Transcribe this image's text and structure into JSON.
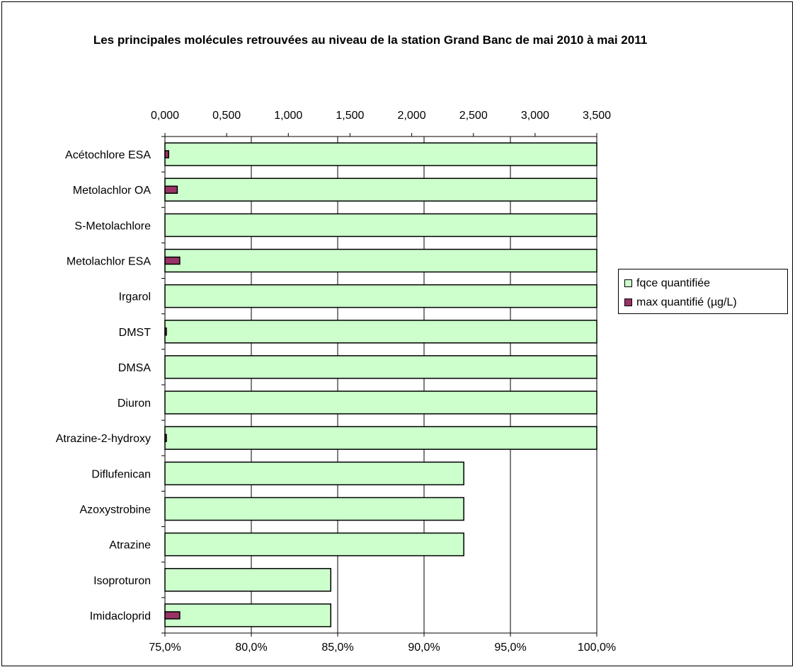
{
  "chart_data": {
    "type": "bar",
    "orientation": "horizontal",
    "title": "Les principales molécules retrouvées au niveau de la station Grand Banc de mai 2010 à mai 2011",
    "categories": [
      "Acétochlore ESA",
      "Metolachlor OA",
      "S-Metolachlore",
      "Metolachlor ESA",
      "Irgarol",
      "DMST",
      "DMSA",
      "Diuron",
      "Atrazine-2-hydroxy",
      "Diflufenican",
      "Azoxystrobine",
      "Atrazine",
      "Isoproturon",
      "Imidacloprid"
    ],
    "series": [
      {
        "name": "fqce quantifiée",
        "axis": "bottom",
        "color": "#ccffcc",
        "values": [
          100.0,
          100.0,
          100.0,
          100.0,
          100.0,
          100.0,
          100.0,
          100.0,
          100.0,
          92.3,
          92.3,
          92.3,
          84.6,
          84.6
        ]
      },
      {
        "name": "max quantifié (µg/L)",
        "axis": "top",
        "color": "#993366",
        "values": [
          0.03,
          0.1,
          0.0,
          0.12,
          0.0,
          0.01,
          0.0,
          0.0,
          0.01,
          0.0,
          0.0,
          0.0,
          0.0,
          0.12
        ]
      }
    ],
    "bottom_axis": {
      "range": [
        75,
        100
      ],
      "tick_labels": [
        "75,0%",
        "80,0%",
        "85,0%",
        "90,0%",
        "95,0%",
        "100,0%"
      ]
    },
    "top_axis": {
      "range": [
        0,
        3.5
      ],
      "tick_labels": [
        "0,000",
        "0,500",
        "1,000",
        "1,500",
        "2,000",
        "2,500",
        "3,000",
        "3,500"
      ]
    },
    "grid": true,
    "legend": "right"
  }
}
